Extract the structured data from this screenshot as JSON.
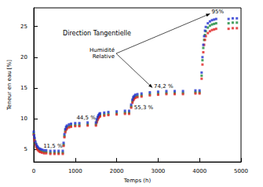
{
  "chart_data": {
    "type": "scatter",
    "title": "Direction Tangentielle",
    "x_label": "Temps (h)",
    "y_label": "Teneur en eau [%]",
    "x": [
      0,
      10,
      20,
      40,
      60,
      80,
      100,
      130,
      160,
      200,
      250,
      300,
      400,
      500,
      600,
      700,
      720,
      740,
      760,
      780,
      800,
      850,
      900,
      1000,
      1100,
      1300,
      1500,
      1520,
      1540,
      1560,
      1580,
      1600,
      1700,
      1800,
      2000,
      2200,
      2300,
      2350,
      2380,
      2400,
      2420,
      2450,
      2500,
      2600,
      2800,
      3000,
      3200,
      3400,
      3600,
      3900,
      4000,
      4050,
      4070,
      4090,
      4110,
      4130,
      4150,
      4200,
      4250,
      4300,
      4350,
      4400,
      4700,
      4800,
      4900
    ],
    "series": [
      {
        "color": "#1a8a3a",
        "values": [
          7.6,
          7.0,
          6.6,
          6.0,
          5.6,
          5.3,
          5.1,
          4.9,
          4.8,
          4.7,
          4.6,
          4.6,
          4.5,
          4.5,
          4.5,
          4.5,
          5.8,
          7.2,
          8.0,
          8.4,
          8.6,
          8.8,
          8.9,
          9.0,
          9.0,
          9.1,
          9.1,
          9.6,
          10.0,
          10.3,
          10.5,
          10.6,
          10.7,
          10.8,
          10.9,
          11.0,
          11.0,
          12.0,
          12.8,
          13.2,
          13.4,
          13.6,
          13.7,
          13.8,
          14.0,
          14.1,
          14.2,
          14.2,
          14.2,
          14.3,
          14.3,
          17.0,
          19.5,
          21.5,
          22.8,
          23.6,
          24.2,
          24.8,
          25.1,
          25.3,
          25.4,
          25.5,
          25.5,
          25.6,
          25.6
        ]
      },
      {
        "color": "#e02020",
        "values": [
          7.4,
          6.8,
          6.4,
          5.8,
          5.4,
          5.1,
          4.9,
          4.7,
          4.6,
          4.5,
          4.4,
          4.4,
          4.3,
          4.3,
          4.3,
          4.3,
          5.6,
          7.0,
          7.8,
          8.2,
          8.4,
          8.6,
          8.7,
          8.8,
          8.8,
          8.9,
          8.9,
          9.4,
          9.8,
          10.1,
          10.3,
          10.4,
          10.5,
          10.6,
          10.7,
          10.8,
          10.8,
          11.8,
          12.6,
          13.0,
          13.2,
          13.4,
          13.5,
          13.6,
          13.8,
          13.9,
          14.0,
          14.0,
          14.0,
          14.1,
          14.1,
          16.5,
          18.8,
          20.8,
          22.0,
          22.8,
          23.4,
          23.9,
          24.2,
          24.4,
          24.5,
          24.6,
          24.6,
          24.7,
          24.7
        ]
      },
      {
        "color": "#2030d0",
        "values": [
          7.9,
          7.3,
          6.9,
          6.3,
          5.9,
          5.6,
          5.4,
          5.2,
          5.1,
          5.0,
          4.9,
          4.9,
          4.8,
          4.8,
          4.8,
          4.8,
          6.1,
          7.5,
          8.3,
          8.7,
          8.9,
          9.1,
          9.2,
          9.3,
          9.3,
          9.4,
          9.4,
          9.9,
          10.3,
          10.6,
          10.8,
          10.9,
          11.0,
          11.1,
          11.2,
          11.3,
          11.3,
          12.3,
          13.1,
          13.5,
          13.7,
          13.9,
          14.0,
          14.1,
          14.3,
          14.4,
          14.5,
          14.5,
          14.5,
          14.6,
          14.6,
          17.5,
          20.0,
          22.0,
          23.4,
          24.3,
          24.9,
          25.5,
          25.8,
          26.0,
          26.1,
          26.2,
          26.2,
          26.3,
          26.3
        ]
      }
    ],
    "xlim": [
      0,
      5000
    ],
    "xticks": [
      0,
      1000,
      2000,
      3000,
      4000,
      5000
    ],
    "ylim": [
      3,
      28
    ],
    "yticks": [
      5,
      10,
      15,
      20,
      25
    ],
    "marker": "square",
    "grid": false,
    "annotations": [
      {
        "text": "Humidité\nRelative",
        "x": 1950,
        "y": 20.6
      },
      {
        "text": "11,5 %",
        "x": 230,
        "y": 5.6
      },
      {
        "text": "44,5 %",
        "x": 1030,
        "y": 10.2
      },
      {
        "text": "55,3 %",
        "x": 2420,
        "y": 11.8
      },
      {
        "text": "74,2 %",
        "x": 2900,
        "y": 15.3
      },
      {
        "text": "95%",
        "x": 4290,
        "y": 27.3
      }
    ]
  }
}
